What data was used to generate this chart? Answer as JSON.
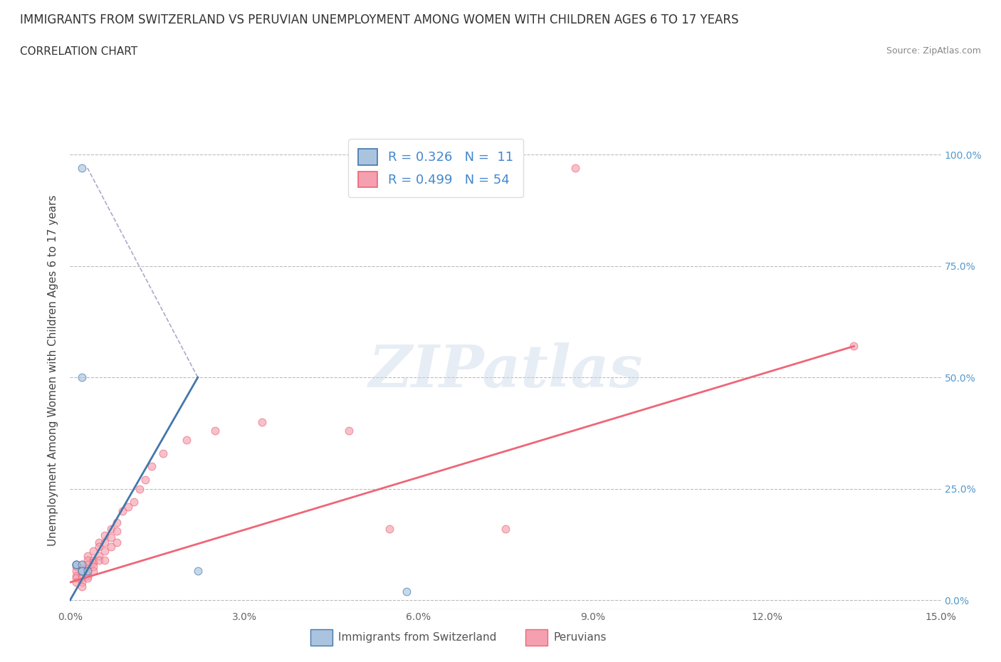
{
  "title": "IMMIGRANTS FROM SWITZERLAND VS PERUVIAN UNEMPLOYMENT AMONG WOMEN WITH CHILDREN AGES 6 TO 17 YEARS",
  "subtitle": "CORRELATION CHART",
  "source": "Source: ZipAtlas.com",
  "xlabel_ticks": [
    "0.0%",
    "3.0%",
    "6.0%",
    "9.0%",
    "12.0%",
    "15.0%"
  ],
  "ylabel_ticks": [
    "0.0%",
    "25.0%",
    "50.0%",
    "75.0%",
    "100.0%"
  ],
  "ylabel_label": "Unemployment Among Women with Children Ages 6 to 17 years",
  "xlim": [
    0,
    0.15
  ],
  "ylim": [
    -0.02,
    1.05
  ],
  "watermark_text": "ZIPatlas",
  "legend_entries": [
    {
      "label": "Immigrants from Switzerland",
      "R": 0.326,
      "N": 11,
      "color": "#aac4e0",
      "line_color": "#4477aa"
    },
    {
      "label": "Peruvians",
      "R": 0.499,
      "N": 54,
      "color": "#f4a0b0",
      "line_color": "#ee6677"
    }
  ],
  "swiss_points": [
    [
      0.002,
      0.97
    ],
    [
      0.002,
      0.5
    ],
    [
      0.001,
      0.08
    ],
    [
      0.001,
      0.08
    ],
    [
      0.001,
      0.08
    ],
    [
      0.002,
      0.08
    ],
    [
      0.002,
      0.065
    ],
    [
      0.002,
      0.065
    ],
    [
      0.003,
      0.065
    ],
    [
      0.022,
      0.065
    ],
    [
      0.058,
      0.02
    ]
  ],
  "peruvian_points": [
    [
      0.087,
      0.97
    ],
    [
      0.001,
      0.08
    ],
    [
      0.001,
      0.075
    ],
    [
      0.001,
      0.065
    ],
    [
      0.001,
      0.055
    ],
    [
      0.001,
      0.05
    ],
    [
      0.001,
      0.04
    ],
    [
      0.002,
      0.08
    ],
    [
      0.002,
      0.07
    ],
    [
      0.002,
      0.065
    ],
    [
      0.002,
      0.055
    ],
    [
      0.002,
      0.05
    ],
    [
      0.002,
      0.04
    ],
    [
      0.002,
      0.03
    ],
    [
      0.003,
      0.1
    ],
    [
      0.003,
      0.09
    ],
    [
      0.003,
      0.08
    ],
    [
      0.003,
      0.07
    ],
    [
      0.003,
      0.065
    ],
    [
      0.003,
      0.055
    ],
    [
      0.003,
      0.05
    ],
    [
      0.004,
      0.11
    ],
    [
      0.004,
      0.09
    ],
    [
      0.004,
      0.085
    ],
    [
      0.004,
      0.075
    ],
    [
      0.004,
      0.065
    ],
    [
      0.005,
      0.13
    ],
    [
      0.005,
      0.12
    ],
    [
      0.005,
      0.1
    ],
    [
      0.005,
      0.09
    ],
    [
      0.006,
      0.145
    ],
    [
      0.006,
      0.13
    ],
    [
      0.006,
      0.11
    ],
    [
      0.006,
      0.09
    ],
    [
      0.007,
      0.16
    ],
    [
      0.007,
      0.14
    ],
    [
      0.007,
      0.12
    ],
    [
      0.008,
      0.175
    ],
    [
      0.008,
      0.155
    ],
    [
      0.008,
      0.13
    ],
    [
      0.009,
      0.2
    ],
    [
      0.01,
      0.21
    ],
    [
      0.011,
      0.22
    ],
    [
      0.012,
      0.25
    ],
    [
      0.013,
      0.27
    ],
    [
      0.014,
      0.3
    ],
    [
      0.016,
      0.33
    ],
    [
      0.02,
      0.36
    ],
    [
      0.025,
      0.38
    ],
    [
      0.033,
      0.4
    ],
    [
      0.048,
      0.38
    ],
    [
      0.055,
      0.16
    ],
    [
      0.075,
      0.16
    ],
    [
      0.135,
      0.57
    ]
  ],
  "swiss_solid_line": [
    [
      0.0,
      0.0
    ],
    [
      0.022,
      0.5
    ]
  ],
  "swiss_dashed_line": [
    [
      0.022,
      0.5
    ],
    [
      0.003,
      0.97
    ]
  ],
  "peruvian_line": [
    [
      0.0,
      0.04
    ],
    [
      0.135,
      0.57
    ]
  ],
  "title_fontsize": 12,
  "subtitle_fontsize": 11,
  "ylabel_fontsize": 11,
  "tick_fontsize": 10,
  "legend_fontsize": 13,
  "background_color": "#ffffff",
  "grid_color": "#bbbbbb",
  "point_size": 60,
  "point_alpha": 0.65
}
